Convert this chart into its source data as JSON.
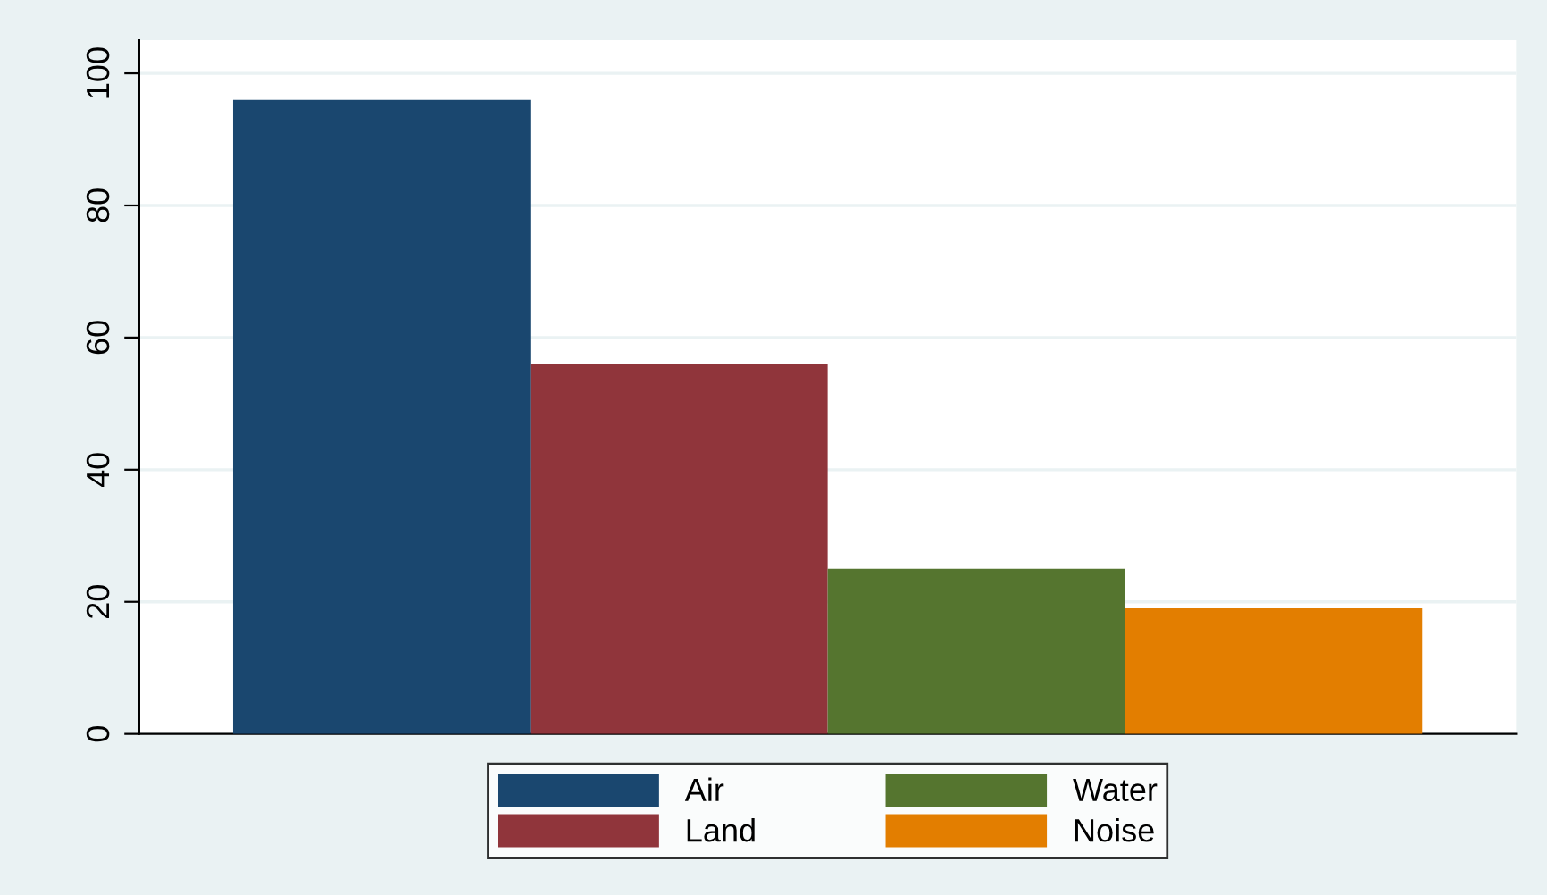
{
  "chart_data": {
    "type": "bar",
    "categories": [
      null
    ],
    "series": [
      {
        "name": "Air",
        "color": "#1a476f",
        "values": [
          96
        ]
      },
      {
        "name": "Land",
        "color": "#90353b",
        "values": [
          56
        ]
      },
      {
        "name": "Water",
        "color": "#55752f",
        "values": [
          25
        ]
      },
      {
        "name": "Noise",
        "color": "#e37e00",
        "values": [
          19
        ]
      }
    ],
    "ylim": [
      0,
      105
    ],
    "yticks": [
      0,
      20,
      40,
      60,
      80,
      100
    ],
    "grid": "y",
    "legend": "bottom",
    "tick_labels": "y"
  }
}
